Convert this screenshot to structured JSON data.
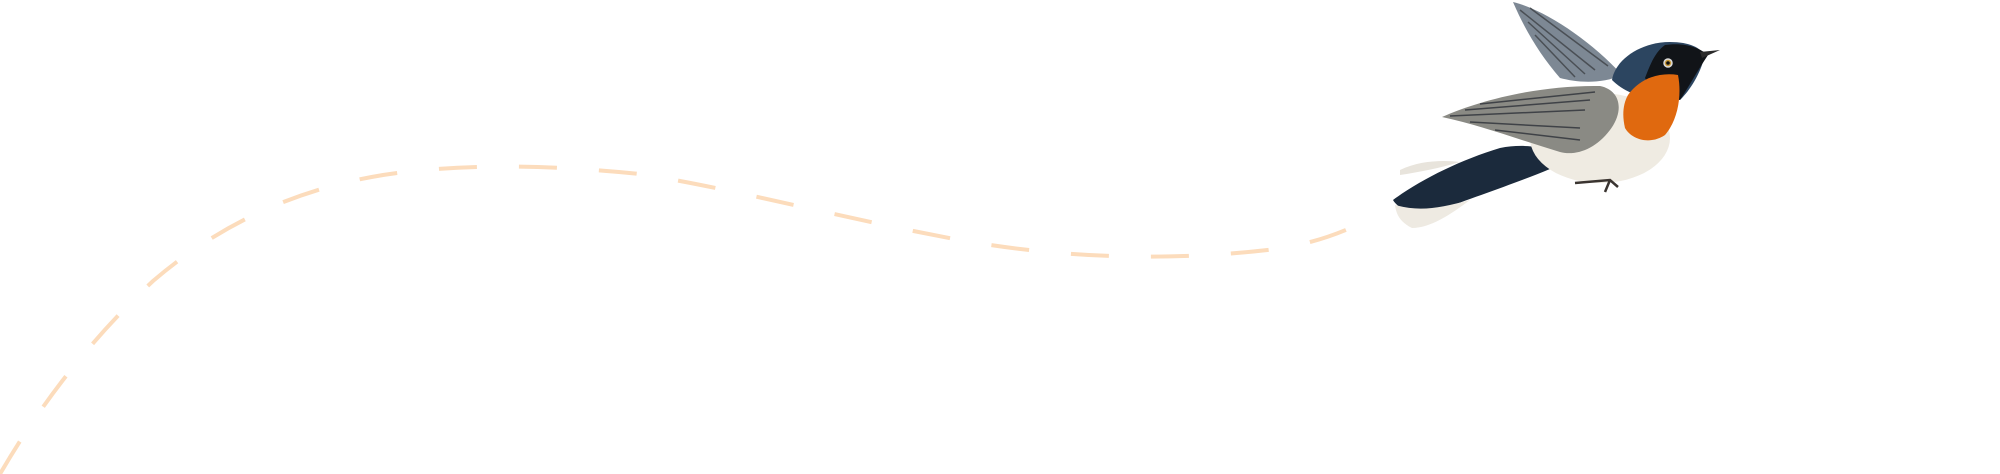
{
  "illustration": {
    "subject": "bird-in-flight",
    "colors": {
      "path": "#fcdcbc",
      "wing": "#7f8790",
      "wing_dark": "#4a4f55",
      "head": "#2c4560",
      "tail": "#1b2a3c",
      "throat": "#e0690f",
      "body": "#efebe2",
      "face": "#111418"
    }
  }
}
